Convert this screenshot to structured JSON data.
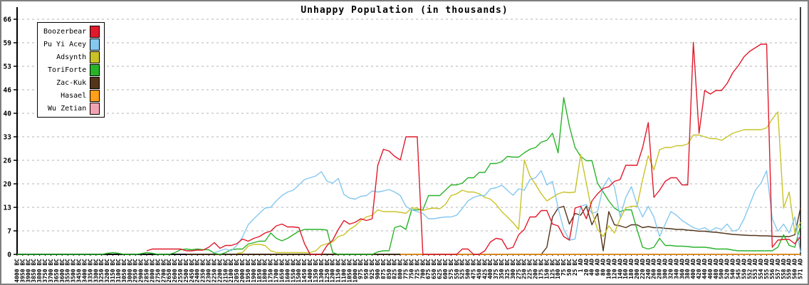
{
  "title": "Unhappy Population (in thousands)",
  "chart_data": {
    "type": "line",
    "grid": "horizontal-dashed",
    "legend_position": "top-left",
    "ylim": [
      0,
      66
    ],
    "y_tick_labels": [
      0,
      7,
      13,
      20,
      26,
      33,
      40,
      46,
      53,
      59,
      66
    ],
    "x_labels": [
      "4000 BC",
      "3950 BC",
      "3900 BC",
      "3850 BC",
      "3800 BC",
      "3750 BC",
      "3700 BC",
      "3650 BC",
      "3600 BC",
      "3550 BC",
      "3500 BC",
      "3450 BC",
      "3400 BC",
      "3350 BC",
      "3300 BC",
      "3250 BC",
      "3200 BC",
      "3150 BC",
      "3100 BC",
      "3050 BC",
      "3000 BC",
      "2950 BC",
      "2900 BC",
      "2850 BC",
      "2800 BC",
      "2750 BC",
      "2700 BC",
      "2650 BC",
      "2600 BC",
      "2550 BC",
      "2500 BC",
      "2450 BC",
      "2400 BC",
      "2350 BC",
      "2300 BC",
      "2250 BC",
      "2200 BC",
      "2150 BC",
      "2100 BC",
      "2050 BC",
      "2000 BC",
      "1950 BC",
      "1900 BC",
      "1850 BC",
      "1800 BC",
      "1750 BC",
      "1700 BC",
      "1650 BC",
      "1600 BC",
      "1550 BC",
      "1500 BC",
      "1450 BC",
      "1400 BC",
      "1350 BC",
      "1300 BC",
      "1250 BC",
      "1200 BC",
      "1150 BC",
      "1100 BC",
      "1050 BC",
      "1000 BC",
      "975 BC",
      "950 BC",
      "925 BC",
      "900 BC",
      "875 BC",
      "850 BC",
      "825 BC",
      "800 BC",
      "775 BC",
      "750 BC",
      "725 BC",
      "700 BC",
      "675 BC",
      "650 BC",
      "625 BC",
      "600 BC",
      "575 BC",
      "550 BC",
      "525 BC",
      "500 BC",
      "475 BC",
      "450 BC",
      "425 BC",
      "400 BC",
      "375 BC",
      "350 BC",
      "325 BC",
      "300 BC",
      "275 BC",
      "250 BC",
      "225 BC",
      "200 BC",
      "175 BC",
      "150 BC",
      "125 BC",
      "100 BC",
      "75 BC",
      "50 BC",
      "25 BC",
      "1 AD",
      "20 AD",
      "40 AD",
      "60 AD",
      "80 AD",
      "100 AD",
      "120 AD",
      "140 AD",
      "160 AD",
      "180 AD",
      "200 AD",
      "220 AD",
      "240 AD",
      "260 AD",
      "280 AD",
      "300 AD",
      "320 AD",
      "340 AD",
      "360 AD",
      "380 AD",
      "400 AD",
      "420 AD",
      "440 AD",
      "460 AD",
      "480 AD",
      "500 AD",
      "520 AD",
      "540 AD",
      "545 AD",
      "550 AD",
      "552 AD",
      "553 AD",
      "554 AD",
      "555 AD",
      "556 AD",
      "557 AD",
      "558 AD",
      "559 AD",
      "560 AD",
      "571 AD"
    ],
    "draw_order": [
      6,
      4,
      5,
      3,
      2,
      1,
      0
    ],
    "series": [
      {
        "name": "Boozerbear",
        "color": "#e01a2c",
        "values": [
          null,
          null,
          null,
          null,
          null,
          null,
          null,
          null,
          null,
          null,
          null,
          null,
          null,
          null,
          null,
          null,
          null,
          null,
          null,
          null,
          null,
          null,
          null,
          1,
          1.5,
          1.5,
          1.5,
          1.5,
          1.5,
          1.5,
          1,
          1,
          1.2,
          1.2,
          2,
          3.3,
          1.7,
          2.5,
          2.5,
          3,
          4.3,
          3.7,
          4.5,
          5,
          6,
          6.5,
          8,
          8.5,
          7.7,
          7.7,
          7.5,
          3,
          0,
          0,
          0,
          2.5,
          4,
          7,
          9.5,
          8.5,
          9,
          10,
          9.5,
          10,
          25,
          29.5,
          29,
          27.5,
          26.5,
          33,
          33,
          33,
          0,
          0,
          0,
          0,
          0,
          0,
          0,
          1.5,
          1.5,
          0,
          0,
          1,
          3.5,
          4.5,
          4.2,
          1.5,
          2,
          5.5,
          7,
          10.5,
          10.5,
          12.3,
          12.3,
          8.5,
          8,
          5,
          4,
          13,
          13.5,
          10,
          15,
          17,
          18.5,
          19,
          20.5,
          21,
          25,
          25,
          25,
          30,
          37,
          16,
          18,
          20.5,
          21.5,
          21.5,
          19.5,
          19.5,
          59.5,
          34,
          46,
          45,
          46,
          46,
          48,
          51,
          53,
          55.5,
          57,
          58,
          59,
          59,
          2,
          4,
          4.2,
          4.2,
          3,
          5
        ]
      },
      {
        "name": "Pu Yi Acey",
        "color": "#85c8ef",
        "values": [
          null,
          null,
          null,
          null,
          null,
          null,
          null,
          null,
          null,
          null,
          null,
          null,
          null,
          null,
          null,
          null,
          null,
          null,
          null,
          null,
          null,
          null,
          null,
          null,
          null,
          null,
          null,
          null,
          null,
          null,
          null,
          null,
          null,
          null,
          null,
          0.5,
          1,
          1.5,
          1,
          2.5,
          4.9,
          8.3,
          10,
          11.5,
          13,
          13.2,
          15,
          16.5,
          17.5,
          18,
          19.5,
          21,
          21.5,
          22,
          23.2,
          20.5,
          20,
          21.3,
          16.8,
          15.8,
          15.5,
          16.3,
          16.5,
          17.8,
          17.5,
          17.8,
          18.2,
          17.5,
          16.5,
          13.5,
          12.5,
          12,
          11.5,
          10,
          10,
          10.3,
          10.5,
          10.5,
          11,
          12.9,
          15,
          16,
          16.5,
          16.5,
          18.4,
          18.7,
          19.4,
          18,
          16.6,
          18.4,
          18,
          21,
          21.5,
          23.5,
          19.5,
          20.5,
          13,
          7,
          4,
          4.3,
          13.5,
          14,
          11.5,
          12,
          19,
          21.5,
          19,
          10.5,
          16,
          19,
          14,
          10.5,
          13.5,
          10.5,
          5,
          8.5,
          12,
          11,
          9.5,
          8.5,
          7.5,
          7,
          7.5,
          6.5,
          7.5,
          7,
          8.5,
          6.5,
          7,
          10,
          14,
          18,
          20,
          23.5,
          10,
          6.5,
          8.5,
          6,
          10.5,
          0.5
        ]
      },
      {
        "name": "Adsynth",
        "color": "#c9c327",
        "values": [
          null,
          null,
          null,
          null,
          null,
          null,
          null,
          null,
          null,
          null,
          null,
          null,
          null,
          null,
          null,
          null,
          null,
          null,
          null,
          null,
          null,
          null,
          null,
          null,
          null,
          null,
          null,
          null,
          null,
          null,
          null,
          null,
          null,
          null,
          null,
          null,
          null,
          null,
          null,
          0.3,
          0.5,
          2.3,
          2.8,
          2.8,
          2.5,
          1,
          0.5,
          0.5,
          0.5,
          0.5,
          0.5,
          0.5,
          0.5,
          1,
          2.5,
          3,
          3.5,
          5,
          5.5,
          7,
          8,
          9.5,
          10.5,
          11,
          12.5,
          12,
          12,
          12,
          11.8,
          11.5,
          13,
          13,
          12.3,
          12.8,
          13,
          12.8,
          14,
          16.5,
          17,
          18,
          17.5,
          17.5,
          17,
          16,
          15.5,
          14,
          12,
          10.5,
          8.9,
          7,
          26.5,
          22,
          19.6,
          17,
          15,
          16,
          17,
          17.5,
          17.3,
          17.5,
          28,
          20,
          12,
          7,
          5,
          8,
          6,
          10,
          13,
          13.5,
          13.5,
          21,
          27.7,
          23.7,
          29.4,
          30,
          30,
          30.5,
          30.5,
          31,
          33.5,
          33.5,
          33,
          32.5,
          32.5,
          32,
          33,
          34,
          34.5,
          35,
          35,
          35,
          35,
          35.5,
          38,
          40,
          13,
          17.5,
          6,
          9
        ]
      },
      {
        "name": "ToriForte",
        "color": "#29b329",
        "values": [
          0,
          0,
          0,
          0,
          0,
          0,
          0,
          0,
          0,
          0,
          0,
          0,
          0,
          0,
          0,
          0,
          0.3,
          0.5,
          0.3,
          0,
          0,
          0,
          0.2,
          0.5,
          0.3,
          0,
          0,
          0,
          0.5,
          1.3,
          1.5,
          1.3,
          1.5,
          1.3,
          1.3,
          0.3,
          0,
          0.5,
          1.3,
          1.5,
          1.5,
          2.9,
          3.3,
          3.7,
          3.7,
          6,
          4.5,
          3.8,
          4.5,
          5.5,
          6.5,
          7,
          7,
          7,
          7,
          6.8,
          0.5,
          0,
          0,
          0,
          0,
          0,
          0,
          0,
          0.7,
          1,
          1,
          7.5,
          8,
          7,
          12.5,
          12.5,
          12.5,
          16.5,
          16.5,
          16.5,
          18,
          19.5,
          19.5,
          20,
          21.5,
          21.5,
          23,
          23,
          25.5,
          25.5,
          26,
          27.5,
          27.3,
          27.3,
          28.5,
          29.5,
          30,
          31.5,
          32,
          34,
          28.5,
          44,
          36,
          30,
          27.5,
          26.3,
          26.3,
          20,
          17.5,
          15,
          13,
          12,
          12.5,
          12.5,
          7,
          2,
          1.5,
          2,
          4.5,
          2.5,
          2.5,
          2.3,
          2.3,
          2.2,
          2,
          2,
          2,
          1.8,
          1.5,
          1.5,
          1.5,
          1.2,
          1,
          1,
          1,
          1,
          1,
          1,
          1,
          2,
          5.5,
          2.5,
          2,
          8
        ]
      },
      {
        "name": "Zac-Kuk",
        "color": "#53351a",
        "values": [
          null,
          null,
          null,
          null,
          null,
          null,
          null,
          null,
          null,
          null,
          null,
          null,
          null,
          null,
          null,
          null,
          null,
          null,
          null,
          null,
          null,
          null,
          null,
          null,
          null,
          null,
          null,
          null,
          null,
          null,
          0,
          0,
          0,
          0,
          0,
          0,
          0,
          0,
          0,
          0,
          0,
          0,
          0,
          0,
          0,
          0,
          0,
          0,
          0,
          0,
          0,
          0,
          0,
          0,
          0,
          0,
          0,
          0,
          0,
          0,
          0,
          0,
          0,
          0,
          0,
          0,
          0,
          0,
          0,
          0,
          0,
          0,
          0,
          0,
          0,
          0,
          0,
          0,
          0,
          0,
          0,
          0,
          0,
          0,
          0,
          0,
          0,
          0,
          0,
          0,
          0,
          0,
          0,
          0,
          2,
          10.5,
          13,
          13.5,
          8.5,
          11.5,
          11,
          13.5,
          8.3,
          11.5,
          1,
          12,
          8.3,
          8,
          7.5,
          8.3,
          8.3,
          7.5,
          7.8,
          7.5,
          7.5,
          7.3,
          7.2,
          7,
          7,
          6.8,
          6.7,
          6.5,
          6.5,
          6.3,
          6.2,
          6,
          5.8,
          5.6,
          5.5,
          5.4,
          5.3,
          5.3,
          5.2,
          5.2,
          5.1,
          5,
          5,
          5,
          5.5,
          13
        ]
      },
      {
        "name": "Hasael",
        "color": "#ff9f1a",
        "values": [
          null,
          null,
          null,
          null,
          null,
          null,
          null,
          null,
          null,
          null,
          null,
          null,
          null,
          null,
          null,
          null,
          null,
          null,
          null,
          null,
          null,
          null,
          null,
          null,
          null,
          null,
          null,
          null,
          null,
          null,
          null,
          null,
          null,
          null,
          null,
          null,
          null,
          null,
          null,
          null,
          null,
          null,
          null,
          null,
          null,
          null,
          null,
          null,
          null,
          null,
          null,
          null,
          null,
          null,
          null,
          null,
          null,
          null,
          null,
          null,
          null,
          null,
          null,
          null,
          null,
          null,
          null,
          null,
          0,
          0,
          0,
          0,
          0,
          0,
          0,
          0,
          0,
          0,
          0,
          0,
          0,
          0,
          0,
          0,
          0,
          0,
          0,
          0,
          0,
          0,
          0,
          0,
          0,
          0,
          0,
          0,
          0,
          0,
          0,
          0,
          0,
          0,
          0,
          0,
          0,
          0,
          0,
          0,
          0,
          0,
          0,
          0,
          0,
          0,
          0,
          0,
          0,
          0,
          0,
          0,
          0,
          0,
          0,
          0,
          0,
          0,
          0,
          0,
          0,
          0,
          0,
          0,
          0,
          0,
          0,
          0,
          0,
          0,
          0,
          0
        ]
      },
      {
        "name": "Wu Zetian",
        "color": "#f2a3b3",
        "values": [
          null,
          null,
          null,
          null,
          null,
          null,
          null,
          null,
          null,
          null,
          null,
          null,
          null,
          null,
          null,
          null,
          null,
          null,
          null,
          null,
          null,
          null,
          null,
          null,
          null,
          null,
          null,
          null,
          null,
          null,
          null,
          null,
          null,
          null,
          null,
          null,
          null,
          null,
          null,
          null,
          null,
          null,
          null,
          null,
          null,
          null,
          null,
          null,
          null,
          null,
          null,
          null,
          null,
          null,
          null,
          null,
          null,
          null,
          null,
          null,
          null,
          null,
          null,
          null,
          null,
          null,
          null,
          null,
          0,
          0,
          0,
          0,
          0,
          0,
          0,
          0,
          0,
          0,
          0,
          0,
          0,
          0,
          0,
          0,
          0,
          0,
          0,
          0,
          0,
          0,
          0,
          0,
          0,
          0,
          0,
          0,
          0,
          0,
          0,
          0,
          0,
          0,
          0,
          0,
          0,
          0,
          0,
          0,
          0,
          0,
          0,
          0,
          0,
          0,
          0,
          0,
          0,
          0,
          0,
          0,
          0,
          0,
          0,
          0,
          0,
          0,
          0,
          0,
          0,
          0,
          0,
          0,
          0,
          0,
          0,
          0,
          0,
          0,
          0,
          0
        ]
      }
    ]
  }
}
